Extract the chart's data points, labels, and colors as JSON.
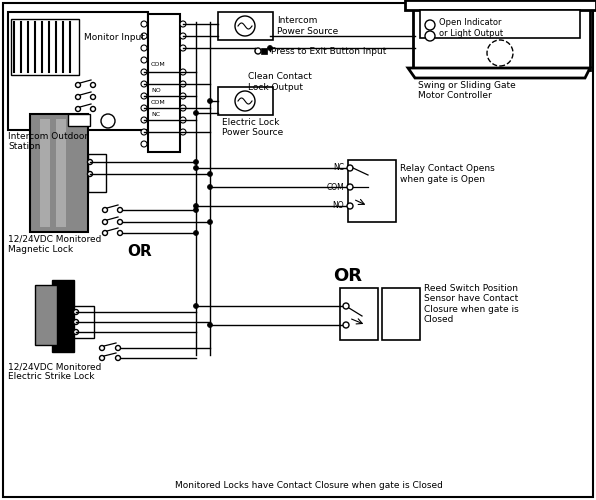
{
  "bg_color": "#ffffff",
  "labels": {
    "intercom_ps": "Intercom\nPower Source",
    "press_exit": "Press to Exit Button Input",
    "clean_contact": "Clean Contact\nLock Output",
    "monitor_input": "Monitor Input",
    "intercom_station": "Intercom Outdoor\nStation",
    "electric_lock_ps": "Electric Lock\nPower Source",
    "relay_contact": "Relay Contact Opens\nwhen gate is Open",
    "swing_gate": "Swing or Sliding Gate\nMotor Controller",
    "open_indicator": "Open Indicator\nor Light Output",
    "reed_switch": "Reed Switch Position\nSensor have Contact\nClosure when gate is\nClosed",
    "mag_lock": "12/24VDC Monitored\nMagnetic Lock",
    "electric_strike": "12/24VDC Monitored\nElectric Strike Lock",
    "monitored_locks": "Monitored Locks have Contact Closure when gate is Closed",
    "or1": "OR",
    "or2": "OR",
    "com1": "COM",
    "no1": "NO",
    "nc1": "NC",
    "nc2": "NC",
    "com2": "COM",
    "no2": "NO"
  }
}
